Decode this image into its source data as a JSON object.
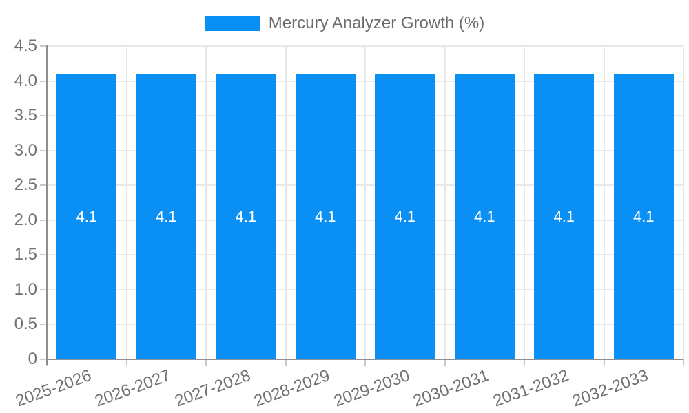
{
  "chart_data": {
    "type": "bar",
    "title": "Mercury Analyzer Growth (%)",
    "legend": {
      "label": "Mercury Analyzer Growth (%)",
      "position": "top-center"
    },
    "categories": [
      "2025-2026",
      "2026-2027",
      "2027-2028",
      "2028-2029",
      "2029-2030",
      "2030-2031",
      "2031-2032",
      "2032-2033"
    ],
    "series": [
      {
        "name": "Mercury Analyzer Growth (%)",
        "values": [
          4.1,
          4.1,
          4.1,
          4.1,
          4.1,
          4.1,
          4.1,
          4.1
        ]
      }
    ],
    "bar_labels": [
      "4.1",
      "4.1",
      "4.1",
      "4.1",
      "4.1",
      "4.1",
      "4.1",
      "4.1"
    ],
    "xlabel": "",
    "ylabel": "",
    "ylim": [
      0,
      4.5
    ],
    "ytick_step": 0.5,
    "ytick_labels": [
      "0",
      "0.5",
      "1.0",
      "1.5",
      "2.0",
      "2.5",
      "3.0",
      "3.5",
      "4.0",
      "4.5"
    ],
    "grid": true,
    "colors": {
      "bar": "#0a90f5",
      "grid": "#e8e8e8",
      "axis": "#8f8f8f",
      "tick": "#c9c9c9",
      "tick_text": "#717171",
      "legend_text": "#6b6b6b",
      "bar_label_text": "#ffffff",
      "background": "#ffffff"
    }
  }
}
